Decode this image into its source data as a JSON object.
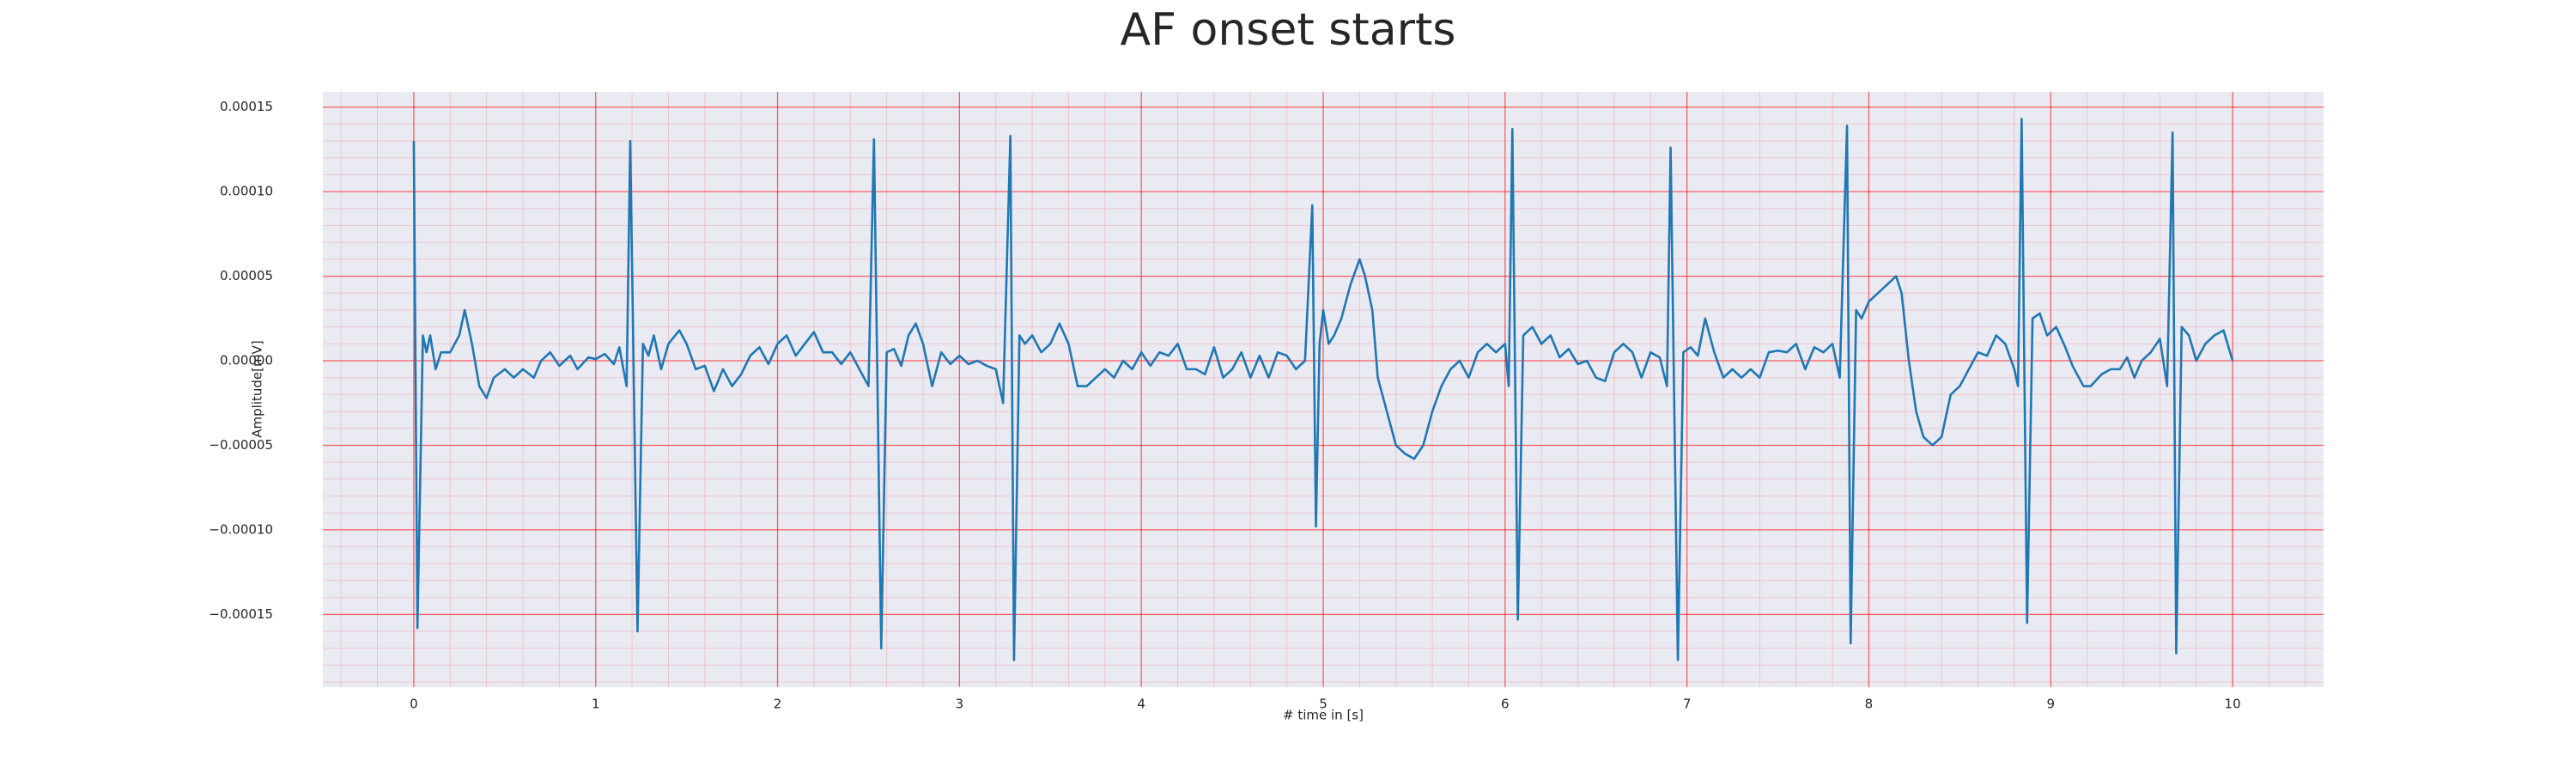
{
  "chart_data": {
    "type": "line",
    "title": "AF onset starts",
    "x_label": "# time in [s]",
    "y_label": "Amplitude[mV]",
    "color": "#1f77b4",
    "grid": true,
    "grid_color": "#ff0000",
    "minor_grid": true,
    "background": "#eaeaf2",
    "xlim": [
      -0.5,
      10.5
    ],
    "ylim": [
      -0.000193,
      0.000159
    ],
    "xticks": [
      0,
      1,
      2,
      3,
      4,
      5,
      6,
      7,
      8,
      9,
      10
    ],
    "yticks": [
      {
        "value": 0.00015,
        "label": "0.00015"
      },
      {
        "value": 0.0001,
        "label": "0.00010"
      },
      {
        "value": 5e-05,
        "label": "0.00005"
      },
      {
        "value": 0,
        "label": "0.00000"
      },
      {
        "value": -5e-05,
        "label": "−0.00005"
      },
      {
        "value": -0.0001,
        "label": "−0.00010"
      },
      {
        "value": -0.00015,
        "label": "−0.00015"
      }
    ],
    "x": [
      0.0,
      0.02,
      0.05,
      0.07,
      0.09,
      0.12,
      0.15,
      0.2,
      0.25,
      0.28,
      0.32,
      0.36,
      0.4,
      0.44,
      0.5,
      0.55,
      0.6,
      0.66,
      0.7,
      0.75,
      0.8,
      0.86,
      0.9,
      0.96,
      1.0,
      1.05,
      1.1,
      1.13,
      1.17,
      1.19,
      1.23,
      1.26,
      1.29,
      1.32,
      1.36,
      1.4,
      1.46,
      1.5,
      1.55,
      1.6,
      1.65,
      1.7,
      1.75,
      1.8,
      1.85,
      1.9,
      1.95,
      2.0,
      2.05,
      2.1,
      2.15,
      2.2,
      2.25,
      2.3,
      2.35,
      2.4,
      2.45,
      2.5,
      2.53,
      2.57,
      2.6,
      2.64,
      2.68,
      2.72,
      2.76,
      2.8,
      2.85,
      2.9,
      2.95,
      3.0,
      3.05,
      3.1,
      3.15,
      3.2,
      3.24,
      3.28,
      3.3,
      3.33,
      3.36,
      3.4,
      3.45,
      3.5,
      3.55,
      3.6,
      3.65,
      3.7,
      3.75,
      3.8,
      3.85,
      3.9,
      3.95,
      4.0,
      4.05,
      4.1,
      4.15,
      4.2,
      4.25,
      4.3,
      4.35,
      4.4,
      4.45,
      4.5,
      4.55,
      4.6,
      4.65,
      4.7,
      4.75,
      4.8,
      4.85,
      4.9,
      4.94,
      4.96,
      4.98,
      5.0,
      5.03,
      5.06,
      5.1,
      5.15,
      5.2,
      5.23,
      5.27,
      5.3,
      5.35,
      5.4,
      5.45,
      5.5,
      5.55,
      5.6,
      5.65,
      5.7,
      5.75,
      5.8,
      5.85,
      5.9,
      5.95,
      6.0,
      6.02,
      6.04,
      6.07,
      6.1,
      6.15,
      6.2,
      6.25,
      6.3,
      6.35,
      6.4,
      6.45,
      6.5,
      6.55,
      6.6,
      6.65,
      6.7,
      6.75,
      6.8,
      6.85,
      6.89,
      6.91,
      6.95,
      6.98,
      7.02,
      7.06,
      7.1,
      7.15,
      7.2,
      7.25,
      7.3,
      7.35,
      7.4,
      7.45,
      7.5,
      7.55,
      7.6,
      7.65,
      7.7,
      7.75,
      7.8,
      7.84,
      7.88,
      7.9,
      7.93,
      7.96,
      8.0,
      8.05,
      8.1,
      8.15,
      8.18,
      8.22,
      8.26,
      8.3,
      8.35,
      8.4,
      8.45,
      8.5,
      8.55,
      8.6,
      8.65,
      8.7,
      8.75,
      8.8,
      8.82,
      8.84,
      8.87,
      8.9,
      8.94,
      8.98,
      9.03,
      9.08,
      9.12,
      9.18,
      9.22,
      9.28,
      9.33,
      9.38,
      9.42,
      9.46,
      9.5,
      9.55,
      9.6,
      9.64,
      9.67,
      9.69,
      9.72,
      9.76,
      9.8,
      9.85,
      9.9,
      9.95,
      10.0
    ],
    "values": [
      0.00013,
      -0.000158,
      1.5e-05,
      5e-06,
      1.5e-05,
      -5e-06,
      5e-06,
      5e-06,
      1.5e-05,
      3e-05,
      1e-05,
      -1.5e-05,
      -2.2e-05,
      -1e-05,
      -5e-06,
      -1e-05,
      -5e-06,
      -1e-05,
      0.0,
      5e-06,
      -3e-06,
      3e-06,
      -5e-06,
      2e-06,
      1e-06,
      4e-06,
      -2e-06,
      8e-06,
      -1.5e-05,
      0.00013,
      -0.00016,
      1e-05,
      3e-06,
      1.5e-05,
      -5e-06,
      1e-05,
      1.8e-05,
      1e-05,
      -5e-06,
      -3e-06,
      -1.8e-05,
      -5e-06,
      -1.5e-05,
      -8e-06,
      3e-06,
      8e-06,
      -2e-06,
      1e-05,
      1.5e-05,
      3e-06,
      1e-05,
      1.7e-05,
      5e-06,
      5e-06,
      -2e-06,
      5e-06,
      -5e-06,
      -1.5e-05,
      0.000131,
      -0.00017,
      5e-06,
      7e-06,
      -3e-06,
      1.5e-05,
      2.2e-05,
      1e-05,
      -1.5e-05,
      5e-06,
      -2e-06,
      3e-06,
      -2e-06,
      0.0,
      -3e-06,
      -5e-06,
      -2.5e-05,
      0.000133,
      -0.000177,
      1.5e-05,
      1e-05,
      1.5e-05,
      5e-06,
      1e-05,
      2.2e-05,
      1e-05,
      -1.5e-05,
      -1.5e-05,
      -1e-05,
      -5e-06,
      -1e-05,
      0.0,
      -5e-06,
      5e-06,
      -3e-06,
      5e-06,
      3e-06,
      1e-05,
      -5e-06,
      -5e-06,
      -8e-06,
      8e-06,
      -1e-05,
      -5e-06,
      5e-06,
      -1e-05,
      3e-06,
      -1e-05,
      5e-06,
      3e-06,
      -5e-06,
      0.0,
      9.2e-05,
      -9.8e-05,
      1e-05,
      3e-05,
      1e-05,
      1.5e-05,
      2.5e-05,
      4.5e-05,
      6e-05,
      5e-05,
      3e-05,
      -1e-05,
      -3e-05,
      -5e-05,
      -5.5e-05,
      -5.8e-05,
      -5e-05,
      -3e-05,
      -1.5e-05,
      -5e-06,
      0.0,
      -1e-05,
      5e-06,
      1e-05,
      5e-06,
      1e-05,
      -1.5e-05,
      0.000137,
      -0.000153,
      1.5e-05,
      2e-05,
      1e-05,
      1.5e-05,
      2e-06,
      7e-06,
      -2e-06,
      0.0,
      -1e-05,
      -1.2e-05,
      5e-06,
      1e-05,
      5e-06,
      -1e-05,
      5e-06,
      2e-06,
      -1.5e-05,
      0.000126,
      -0.000177,
      5e-06,
      8e-06,
      3e-06,
      2.5e-05,
      5e-06,
      -1e-05,
      -5e-06,
      -1e-05,
      -5e-06,
      -1e-05,
      5e-06,
      6e-06,
      5e-06,
      1e-05,
      -5e-06,
      8e-06,
      5e-06,
      1e-05,
      -1e-05,
      0.000139,
      -0.000167,
      3e-05,
      2.5e-05,
      3.5e-05,
      4e-05,
      4.5e-05,
      5e-05,
      4e-05,
      0.0,
      -3e-05,
      -4.5e-05,
      -5e-05,
      -4.5e-05,
      -2e-05,
      -1.5e-05,
      -5e-06,
      5e-06,
      3e-06,
      1.5e-05,
      1e-05,
      -5e-06,
      -1.5e-05,
      0.000143,
      -0.000155,
      2.5e-05,
      2.8e-05,
      1.5e-05,
      2e-05,
      8e-06,
      -3e-06,
      -1.5e-05,
      -1.5e-05,
      -8e-06,
      -5e-06,
      -5e-06,
      2e-06,
      -1e-05,
      0.0,
      5e-06,
      1.3e-05,
      -1.5e-05,
      0.000135,
      -0.000173,
      2e-05,
      1.5e-05,
      0.0,
      1e-05,
      1.5e-05,
      1.8e-05,
      0.0
    ]
  }
}
